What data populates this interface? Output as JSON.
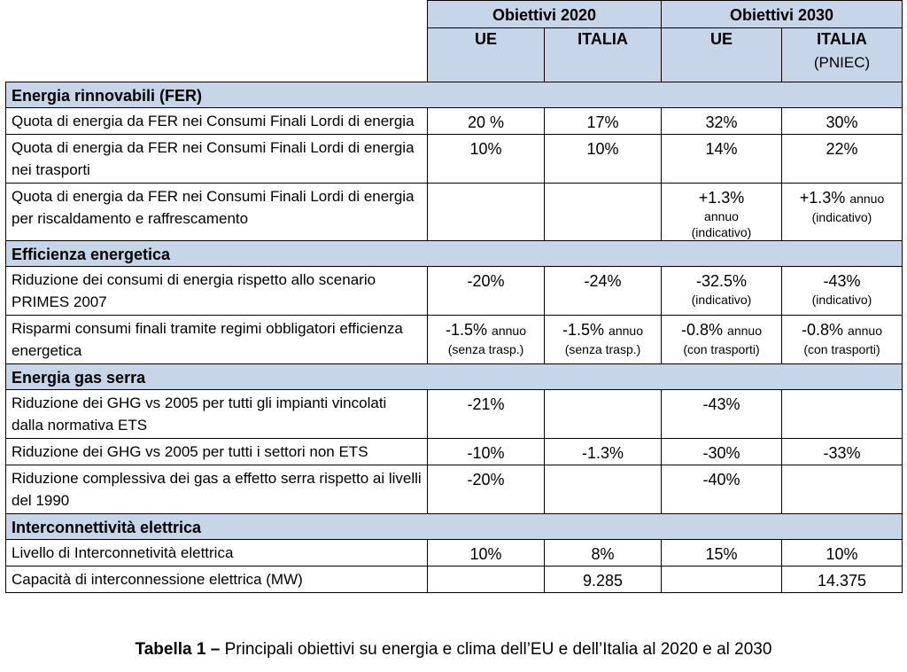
{
  "header": {
    "group_2020": "Obiettivi 2020",
    "group_2030": "Obiettivi 2030",
    "col_ue_2020": "UE",
    "col_italia_2020": "ITALIA",
    "col_ue_2030": "UE",
    "col_italia_2030": "ITALIA",
    "col_italia_2030_note": "(PNIEC)"
  },
  "sections": {
    "fer": {
      "title": "Energia rinnovabili (FER)",
      "rows": [
        {
          "label": "Quota di energia da FER nei Consumi Finali Lordi di energia",
          "ue2020": "20 %",
          "it2020": "17%",
          "ue2030": "32%",
          "it2030": "30%"
        },
        {
          "label": "Quota di energia da FER nei Consumi Finali Lordi di energia nei trasporti",
          "ue2020": "10%",
          "it2020": "10%",
          "ue2030": "14%",
          "it2030": "22%"
        },
        {
          "label": "Quota di energia da FER nei Consumi Finali Lordi di energia per riscaldamento e raffrescamento",
          "ue2020": "",
          "it2020": "",
          "ue2030": "+1.3%",
          "ue2030_s1": "annuo",
          "ue2030_s2": "(indicativo)",
          "it2030": "+1.3%",
          "it2030_inl": "annuo",
          "it2030_s": "(indicativo)"
        }
      ]
    },
    "eff": {
      "title": "Efficienza energetica",
      "rows": [
        {
          "label": "Riduzione dei consumi di energia rispetto allo scenario PRIMES 2007",
          "ue2020": "-20%",
          "it2020": "-24%",
          "ue2030": "-32.5%",
          "ue2030_s": "(indicativo)",
          "it2030": "-43%",
          "it2030_s": "(indicativo)"
        },
        {
          "label": "Risparmi consumi finali tramite regimi obbligatori efficienza energetica",
          "ue2020": "-1.5%",
          "ue2020_inl": "annuo",
          "ue2020_s": "(senza trasp.)",
          "it2020": "-1.5%",
          "it2020_inl": "annuo",
          "it2020_s": "(senza trasp.)",
          "ue2030": "-0.8%",
          "ue2030_inl": "annuo",
          "ue2030_s": "(con trasporti)",
          "it2030": "-0.8%",
          "it2030_inl": "annuo",
          "it2030_s": "(con trasporti)"
        }
      ]
    },
    "ghg": {
      "title": "Energia gas serra",
      "rows": [
        {
          "label": "Riduzione dei GHG vs 2005 per tutti gli impianti vincolati dalla normativa ETS",
          "ue2020": "-21%",
          "it2020": "",
          "ue2030": "-43%",
          "it2030": ""
        },
        {
          "label": "Riduzione dei GHG vs 2005 per tutti i settori non ETS",
          "ue2020": "-10%",
          "it2020": "-1.3%",
          "ue2030": "-30%",
          "it2030": "-33%"
        },
        {
          "label": "Riduzione complessiva dei gas a effetto serra rispetto ai livelli del 1990",
          "ue2020": "-20%",
          "it2020": "",
          "ue2030": "-40%",
          "it2030": ""
        }
      ]
    },
    "int": {
      "title": "Interconnettività elettrica",
      "rows": [
        {
          "label": "Livello di Interconnetività elettrica",
          "ue2020": "10%",
          "it2020": "8%",
          "ue2030": "15%",
          "it2030": "10%"
        },
        {
          "label": "Capacità di interconnessione elettrica (MW)",
          "ue2020": "",
          "it2020": "9.285",
          "ue2030": "",
          "it2030": "14.375"
        }
      ]
    }
  },
  "caption": {
    "prefix": "Tabella 1 –",
    "text": " Principali obiettivi su energia e clima dell’EU e dell’Italia al 2020 e al 2030"
  }
}
